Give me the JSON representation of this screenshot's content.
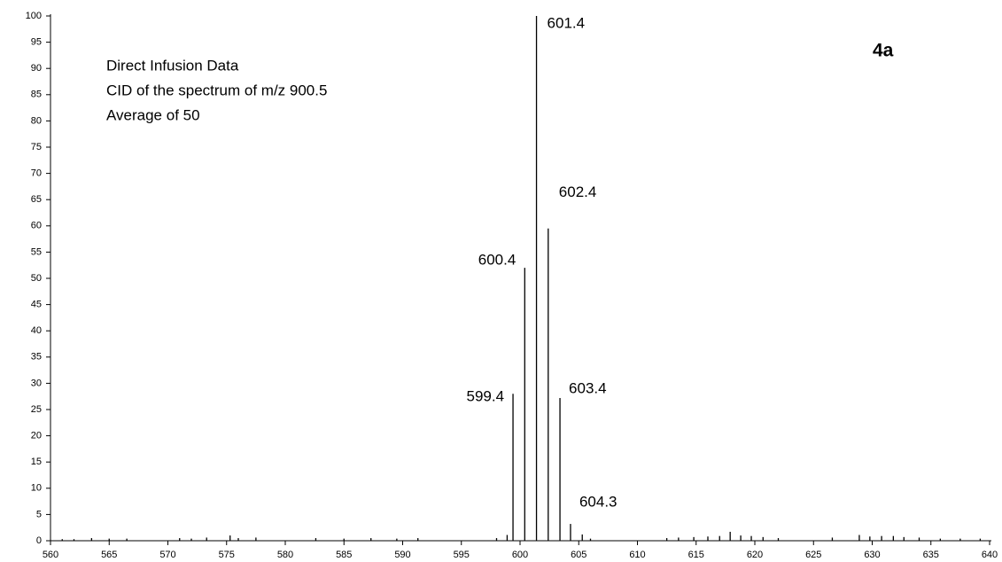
{
  "chart_data": {
    "type": "stem",
    "panel_label": "4a",
    "annotations": [
      "Direct Infusion Data",
      "CID of the spectrum of m/z 900.5",
      "Average of 50"
    ],
    "xlim": [
      560,
      640
    ],
    "xticks": [
      560,
      565,
      570,
      575,
      580,
      585,
      590,
      595,
      600,
      605,
      610,
      615,
      620,
      625,
      630,
      635,
      640
    ],
    "ylim": [
      0,
      100
    ],
    "yticks": [
      0,
      5,
      10,
      15,
      20,
      25,
      30,
      35,
      40,
      45,
      50,
      55,
      60,
      65,
      70,
      75,
      80,
      85,
      90,
      95,
      100
    ],
    "color": "#000000",
    "series": [
      {
        "labels": true,
        "x": [
          599.4,
          600.4,
          601.4,
          602.4,
          603.4,
          604.3
        ],
        "values": [
          28,
          52,
          100,
          59.5,
          27.2,
          3.2
        ]
      },
      {
        "labels": false,
        "x": [
          561,
          562,
          563.5,
          565,
          566.5,
          571,
          572,
          573.3,
          575.3,
          576,
          577.5,
          582.6,
          585,
          587.3,
          589.5,
          591.3,
          598,
          598.9,
          605.3,
          606,
          612.5,
          613.5,
          614.8,
          616,
          617,
          617.9,
          618.8,
          619.7,
          620.7,
          622,
          626.6,
          628.9,
          629.8,
          630.8,
          631.8,
          632.7,
          634,
          635.8,
          637.5,
          639.2
        ],
        "values": [
          0.3,
          0.3,
          0.5,
          0.4,
          0.4,
          0.5,
          0.4,
          0.6,
          1.0,
          0.5,
          0.6,
          0.5,
          0.4,
          0.5,
          0.4,
          0.5,
          0.5,
          1.1,
          1.2,
          0.4,
          0.5,
          0.6,
          0.7,
          0.8,
          0.9,
          1.7,
          1.0,
          0.9,
          0.7,
          0.5,
          0.6,
          1.1,
          0.8,
          0.9,
          0.9,
          0.7,
          0.6,
          0.4,
          0.4,
          0.4
        ]
      }
    ]
  }
}
